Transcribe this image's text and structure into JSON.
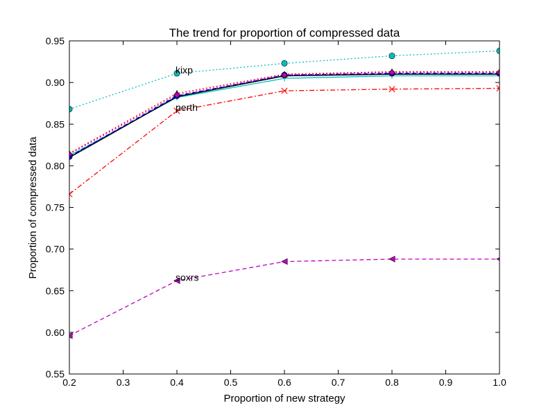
{
  "chart_data": {
    "type": "line",
    "title": "The trend for proportion of compressed data",
    "xlabel": "Proportion of new strategy",
    "ylabel": "Proportion of compressed data",
    "xlim": [
      0.2,
      1.0
    ],
    "ylim": [
      0.55,
      0.95
    ],
    "x_ticks": [
      0.2,
      0.3,
      0.4,
      0.5,
      0.6,
      0.7,
      0.8,
      0.9,
      1.0
    ],
    "x_tick_labels": [
      "0.2",
      "0.3",
      "0.4",
      "0.5",
      "0.6",
      "0.7",
      "0.8",
      "0.9",
      "1.0"
    ],
    "y_ticks": [
      0.55,
      0.6,
      0.65,
      0.7,
      0.75,
      0.8,
      0.85,
      0.9,
      0.95
    ],
    "y_tick_labels": [
      "0.55",
      "0.60",
      "0.65",
      "0.70",
      "0.75",
      "0.80",
      "0.85",
      "0.90",
      "0.95"
    ],
    "grid": false,
    "legend": "none",
    "x": [
      0.2,
      0.4,
      0.6,
      0.8,
      1.0
    ],
    "series": [
      {
        "color": "#00bfbf",
        "style": "dotted",
        "marker": "circle",
        "values": [
          0.868,
          0.911,
          0.923,
          0.932,
          0.938
        ]
      },
      {
        "color": "#ff0000",
        "style": "dashdot",
        "marker": "x",
        "values": [
          0.766,
          0.866,
          0.89,
          0.892,
          0.893
        ]
      },
      {
        "color": "#bf00bf",
        "style": "dashed",
        "marker": "triangle-left",
        "values": [
          0.596,
          0.662,
          0.685,
          0.688,
          0.688
        ]
      },
      {
        "color": "#00bfbf",
        "style": "solid",
        "marker": "tri-down",
        "values": [
          0.812,
          0.882,
          0.905,
          0.908,
          0.908
        ]
      },
      {
        "color": "#000000",
        "style": "solid",
        "marker": "none",
        "values": [
          0.81,
          0.883,
          0.908,
          0.91,
          0.91
        ]
      },
      {
        "color": "#0000ff",
        "style": "dashed",
        "marker": "circle",
        "values": [
          0.811,
          0.884,
          0.909,
          0.911,
          0.911
        ]
      },
      {
        "color": "#ff0000",
        "style": "dotted",
        "marker": "triangle-up",
        "values": [
          0.815,
          0.887,
          0.91,
          0.913,
          0.913
        ]
      },
      {
        "color": "#bf00bf",
        "style": "dotted",
        "marker": "diamond",
        "values": [
          0.814,
          0.885,
          0.909,
          0.912,
          0.912
        ]
      }
    ],
    "annotations": [
      {
        "text": "kixp",
        "x": 0.4,
        "y": 0.911
      },
      {
        "text": "perth",
        "x": 0.4,
        "y": 0.866
      },
      {
        "text": "soxrs",
        "x": 0.4,
        "y": 0.662
      }
    ]
  }
}
